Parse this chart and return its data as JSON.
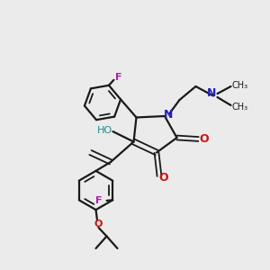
{
  "background_color": "#ebebeb",
  "bond_color": "#1a1a1a",
  "N_color": "#2222bb",
  "O_color": "#cc1111",
  "F_color": "#aa22aa",
  "HO_color": "#228888",
  "figsize": [
    3.0,
    3.0
  ],
  "dpi": 100,
  "xlim": [
    0,
    10
  ],
  "ylim": [
    0,
    10
  ]
}
